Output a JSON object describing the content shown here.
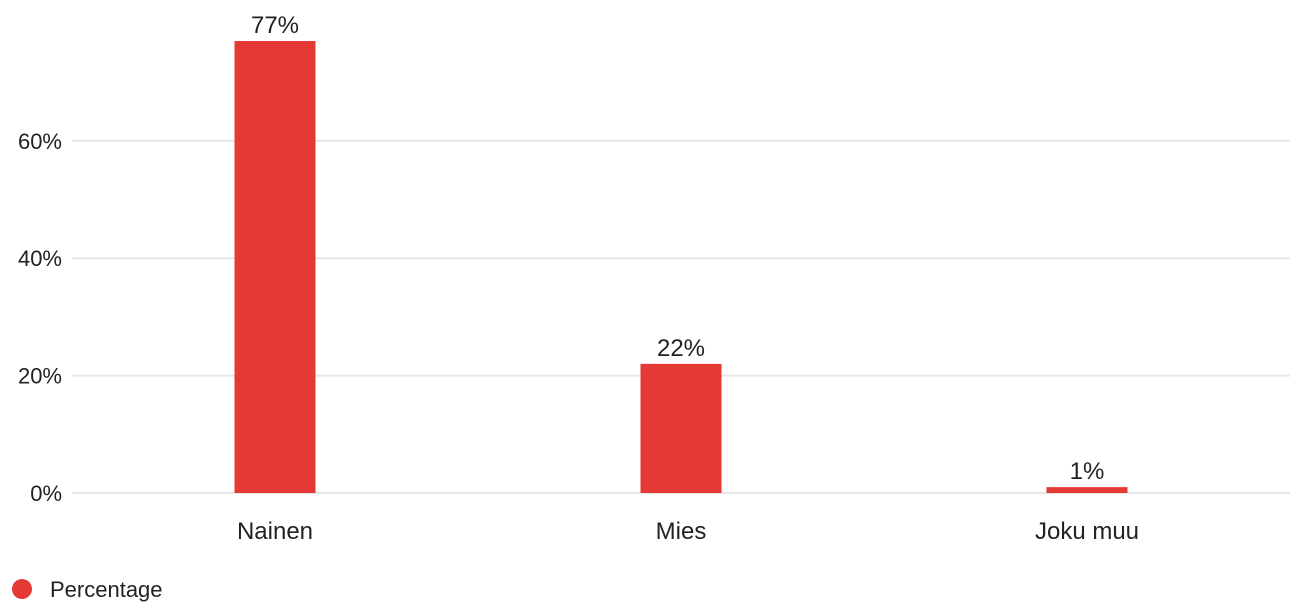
{
  "chart_data": {
    "type": "bar",
    "categories": [
      "Nainen",
      "Mies",
      "Joku muu"
    ],
    "series": [
      {
        "name": "Percentage",
        "values": [
          77,
          22,
          1
        ],
        "data_labels": [
          "77%",
          "22%",
          "1%"
        ],
        "color": "#e53935"
      }
    ],
    "title": "",
    "xlabel": "",
    "ylabel": "",
    "ylim": [
      0,
      77
    ],
    "yticks": [
      0,
      20,
      40,
      60
    ],
    "ytick_labels": [
      "0%",
      "20%",
      "40%",
      "60%"
    ],
    "grid": true,
    "grid_color": "#e6e6e6",
    "legend_position": "bottom-left"
  }
}
